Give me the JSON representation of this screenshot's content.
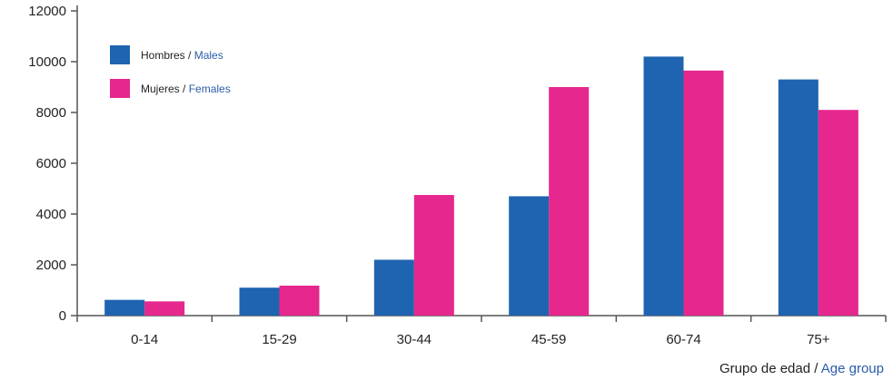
{
  "chart_data": {
    "type": "bar",
    "title": "",
    "ylim": [
      0,
      12000
    ],
    "yticks": [
      0,
      2000,
      4000,
      6000,
      8000,
      10000,
      12000
    ],
    "categories": [
      "0-14",
      "15-29",
      "30-44",
      "45-59",
      "60-74",
      "75+"
    ],
    "series": [
      {
        "name": "Hombres / Males",
        "name_es": "Hombres",
        "name_sep": " / ",
        "name_en": "Males",
        "color": "#1f64b0",
        "values": [
          620,
          1100,
          2200,
          4700,
          10200,
          9300
        ]
      },
      {
        "name": "Mujeres / Females",
        "name_es": "Mujeres",
        "name_sep": " / ",
        "name_en": "Females",
        "color": "#e5278e",
        "values": [
          560,
          1180,
          4750,
          9000,
          9650,
          8100
        ]
      }
    ],
    "xlabel": {
      "es": "Grupo de edad",
      "sep": " / ",
      "en": "Age group"
    },
    "legend_position": "top-left",
    "grid": false,
    "colors": {
      "axis": "#555555",
      "text": "#222222",
      "english_text": "#2a5caa"
    }
  }
}
